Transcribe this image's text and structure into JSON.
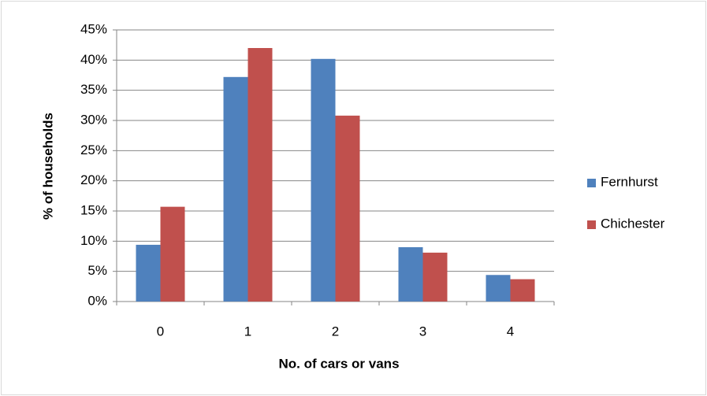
{
  "chart_data": {
    "type": "bar",
    "categories": [
      "0",
      "1",
      "2",
      "3",
      "4"
    ],
    "series": [
      {
        "name": "Fernhurst",
        "color": "#4f81bd",
        "values": [
          9.4,
          37.2,
          40.2,
          9.0,
          4.4
        ]
      },
      {
        "name": "Chichester",
        "color": "#c0504d",
        "values": [
          15.7,
          42.0,
          30.8,
          8.1,
          3.7
        ]
      }
    ],
    "x_label": "No. of cars or vans",
    "y_label": "% of households",
    "ylim": [
      0,
      45
    ],
    "yticks": [
      {
        "value": 0,
        "label": "0%"
      },
      {
        "value": 5,
        "label": "5%"
      },
      {
        "value": 10,
        "label": "10%"
      },
      {
        "value": 15,
        "label": "15%"
      },
      {
        "value": 20,
        "label": "20%"
      },
      {
        "value": 25,
        "label": "25%"
      },
      {
        "value": 30,
        "label": "30%"
      },
      {
        "value": 35,
        "label": "35%"
      },
      {
        "value": 40,
        "label": "40%"
      },
      {
        "value": 45,
        "label": "45%"
      }
    ],
    "grid": true,
    "legend": "right"
  }
}
